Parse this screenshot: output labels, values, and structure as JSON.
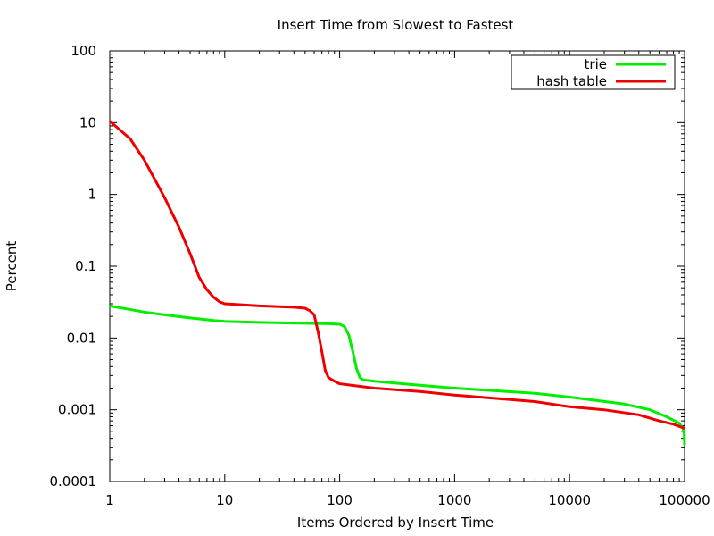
{
  "chart_data": {
    "type": "line",
    "title": "Insert Time from Slowest to Fastest",
    "xlabel": "Items Ordered by Insert Time",
    "ylabel": "Percent",
    "xscale": "log",
    "yscale": "log",
    "xlim": [
      1,
      100000
    ],
    "ylim": [
      0.0001,
      100
    ],
    "xticks": [
      1,
      10,
      100,
      1000,
      10000,
      100000
    ],
    "xtick_labels": [
      "1",
      "10",
      "100",
      "1000",
      "10000",
      "100000"
    ],
    "yticks": [
      0.0001,
      0.001,
      0.01,
      0.1,
      1,
      10,
      100
    ],
    "ytick_labels": [
      "0.0001",
      "0.001",
      "0.01",
      "0.1",
      "1",
      "10",
      "100"
    ],
    "grid": false,
    "legend": "top-right",
    "series": [
      {
        "name": "trie",
        "color": "#00ee00",
        "points": [
          [
            1,
            0.028
          ],
          [
            2,
            0.023
          ],
          [
            3,
            0.021
          ],
          [
            5,
            0.019
          ],
          [
            8,
            0.0175
          ],
          [
            10,
            0.017
          ],
          [
            20,
            0.0165
          ],
          [
            50,
            0.016
          ],
          [
            80,
            0.0158
          ],
          [
            100,
            0.0155
          ],
          [
            110,
            0.0145
          ],
          [
            120,
            0.011
          ],
          [
            130,
            0.0065
          ],
          [
            140,
            0.0038
          ],
          [
            150,
            0.0028
          ],
          [
            160,
            0.0026
          ],
          [
            200,
            0.0025
          ],
          [
            500,
            0.0022
          ],
          [
            1000,
            0.002
          ],
          [
            5000,
            0.0017
          ],
          [
            10000,
            0.0015
          ],
          [
            30000,
            0.0012
          ],
          [
            50000,
            0.001
          ],
          [
            70000,
            0.0008
          ],
          [
            90000,
            0.00065
          ],
          [
            97000,
            0.00055
          ],
          [
            99500,
            0.00045
          ],
          [
            100000,
            0.00032
          ]
        ]
      },
      {
        "name": "hash table",
        "color": "#ee0000",
        "points": [
          [
            1,
            10.5
          ],
          [
            1.5,
            6
          ],
          [
            2,
            3
          ],
          [
            3,
            0.9
          ],
          [
            4,
            0.35
          ],
          [
            5,
            0.15
          ],
          [
            6,
            0.07
          ],
          [
            7,
            0.047
          ],
          [
            8,
            0.037
          ],
          [
            9,
            0.032
          ],
          [
            10,
            0.03
          ],
          [
            20,
            0.028
          ],
          [
            40,
            0.0268
          ],
          [
            50,
            0.026
          ],
          [
            55,
            0.024
          ],
          [
            60,
            0.021
          ],
          [
            65,
            0.012
          ],
          [
            70,
            0.0065
          ],
          [
            75,
            0.0035
          ],
          [
            80,
            0.0028
          ],
          [
            90,
            0.0025
          ],
          [
            100,
            0.0023
          ],
          [
            200,
            0.002
          ],
          [
            500,
            0.0018
          ],
          [
            1000,
            0.0016
          ],
          [
            5000,
            0.0013
          ],
          [
            10000,
            0.0011
          ],
          [
            20000,
            0.001
          ],
          [
            40000,
            0.00085
          ],
          [
            60000,
            0.0007
          ],
          [
            80000,
            0.00063
          ],
          [
            100000,
            0.00055
          ]
        ]
      }
    ]
  }
}
